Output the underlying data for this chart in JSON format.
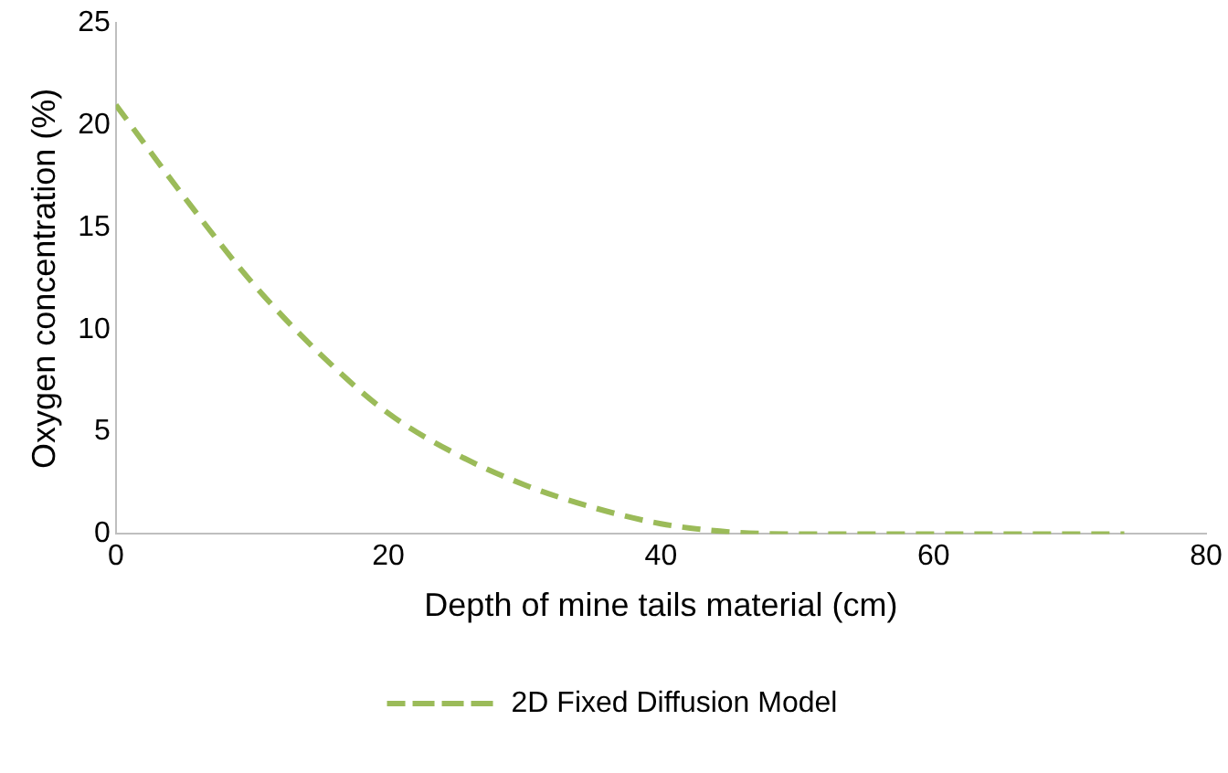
{
  "chart_data": {
    "type": "line",
    "xlabel": "Depth of mine tails material (cm)",
    "ylabel": "Oxygen concentration (%)",
    "xlim": [
      0,
      80
    ],
    "xticks": [
      0,
      20,
      40,
      60,
      80
    ],
    "ylim": [
      0,
      25
    ],
    "yticks": [
      0,
      5,
      10,
      15,
      20,
      25
    ],
    "x": [
      0,
      5,
      10,
      15,
      20,
      25,
      30,
      35,
      40,
      45,
      50,
      55,
      60,
      65,
      70,
      74
    ],
    "series": [
      {
        "name": "2D Fixed Diffusion Model",
        "color": "#9bbb59",
        "values": [
          21,
          16.5,
          12.3,
          8.8,
          5.9,
          3.9,
          2.4,
          1.3,
          0.5,
          0.1,
          0,
          0,
          0,
          0,
          0,
          0
        ]
      }
    ],
    "grid": false,
    "legend": "bottom",
    "marker": "none",
    "line_style": "dashed"
  }
}
